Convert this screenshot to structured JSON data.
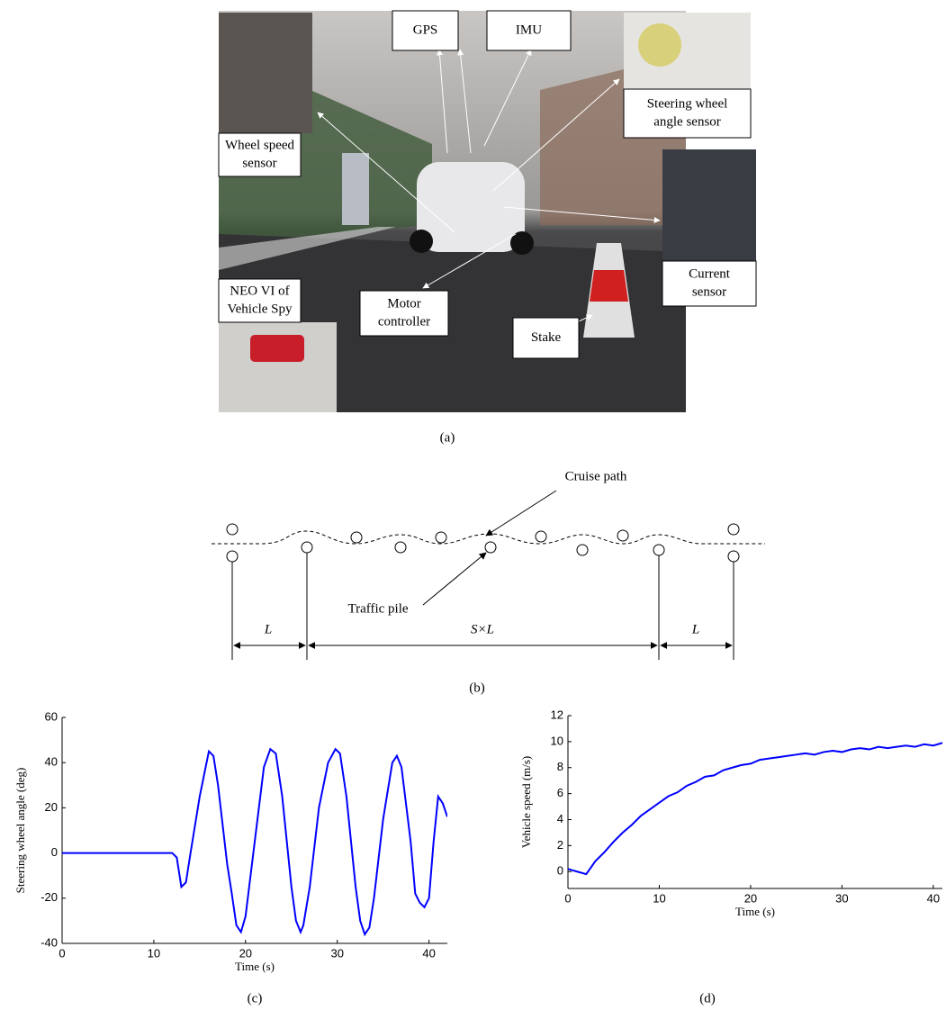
{
  "figure_a": {
    "panel_label": "(a)",
    "labels": [
      {
        "lines": [
          "GPS"
        ]
      },
      {
        "lines": [
          "IMU"
        ]
      },
      {
        "lines": [
          "Steering wheel",
          "angle sensor"
        ]
      },
      {
        "lines": [
          "Wheel speed",
          "sensor"
        ]
      },
      {
        "lines": [
          "Current",
          "sensor"
        ]
      },
      {
        "lines": [
          "NEO VI of",
          "Vehicle Spy"
        ]
      },
      {
        "lines": [
          "Motor",
          "controller"
        ]
      },
      {
        "lines": [
          "Stake"
        ]
      }
    ]
  },
  "figure_b": {
    "panel_label": "(b)",
    "cruise_path": "Cruise path",
    "traffic_pile": "Traffic pile",
    "dimensions": [
      "L",
      "S×L",
      "L"
    ]
  },
  "chart_data": [
    {
      "type": "line",
      "panel_label": "(c)",
      "xlabel": "Time (s)",
      "ylabel": "Steering wheel angle (deg)",
      "xlim": [
        0,
        42
      ],
      "ylim": [
        -40,
        60
      ],
      "xticks": [
        0,
        10,
        20,
        30,
        40
      ],
      "yticks": [
        -40,
        -20,
        0,
        20,
        40,
        60
      ],
      "x": [
        0,
        12,
        12.5,
        13,
        13.5,
        14,
        15,
        16,
        16.5,
        17,
        18,
        18.5,
        19,
        19.5,
        20,
        21,
        22,
        22.7,
        23.3,
        24,
        25,
        25.5,
        26,
        26.3,
        27,
        28,
        29,
        29.8,
        30.3,
        31,
        32,
        32.5,
        33,
        33.5,
        34,
        35,
        36,
        36.5,
        37,
        38,
        38.5,
        39,
        39.5,
        40,
        40.5,
        41,
        41.5,
        42
      ],
      "series": [
        {
          "color": "#0000ff",
          "values": [
            0,
            0,
            -2,
            -15,
            -13,
            0,
            25,
            45,
            43,
            30,
            -5,
            -18,
            -32,
            -35,
            -28,
            5,
            38,
            46,
            44,
            25,
            -15,
            -30,
            -35,
            -32,
            -15,
            20,
            40,
            46,
            44,
            25,
            -15,
            -30,
            -36,
            -33,
            -20,
            15,
            40,
            43,
            38,
            5,
            -18,
            -22,
            -24,
            -20,
            5,
            25,
            22,
            16
          ]
        }
      ]
    },
    {
      "type": "line",
      "panel_label": "(d)",
      "xlabel": "Time (s)",
      "ylabel": "Vehicle speed (m/s)",
      "xlim": [
        0,
        41
      ],
      "ylim": [
        -1.3,
        12
      ],
      "xticks": [
        0,
        10,
        20,
        30,
        40
      ],
      "yticks": [
        0,
        2,
        4,
        6,
        8,
        10,
        12
      ],
      "x": [
        0,
        1,
        2,
        3,
        4,
        5,
        6,
        7,
        8,
        9,
        10,
        11,
        12,
        13,
        14,
        15,
        16,
        17,
        18,
        19,
        20,
        21,
        22,
        23,
        24,
        25,
        26,
        27,
        28,
        29,
        30,
        31,
        32,
        33,
        34,
        35,
        36,
        37,
        38,
        39,
        40,
        41,
        42
      ],
      "series": [
        {
          "color": "#0000ff",
          "values": [
            0.2,
            0,
            -0.2,
            0.8,
            1.5,
            2.3,
            3.0,
            3.6,
            4.3,
            4.8,
            5.3,
            5.8,
            6.1,
            6.6,
            6.9,
            7.3,
            7.4,
            7.8,
            8.0,
            8.2,
            8.3,
            8.6,
            8.7,
            8.8,
            8.9,
            9.0,
            9.1,
            9.0,
            9.2,
            9.3,
            9.2,
            9.4,
            9.5,
            9.4,
            9.6,
            9.5,
            9.6,
            9.7,
            9.6,
            9.8,
            9.7,
            9.9,
            9.7
          ]
        }
      ]
    }
  ]
}
